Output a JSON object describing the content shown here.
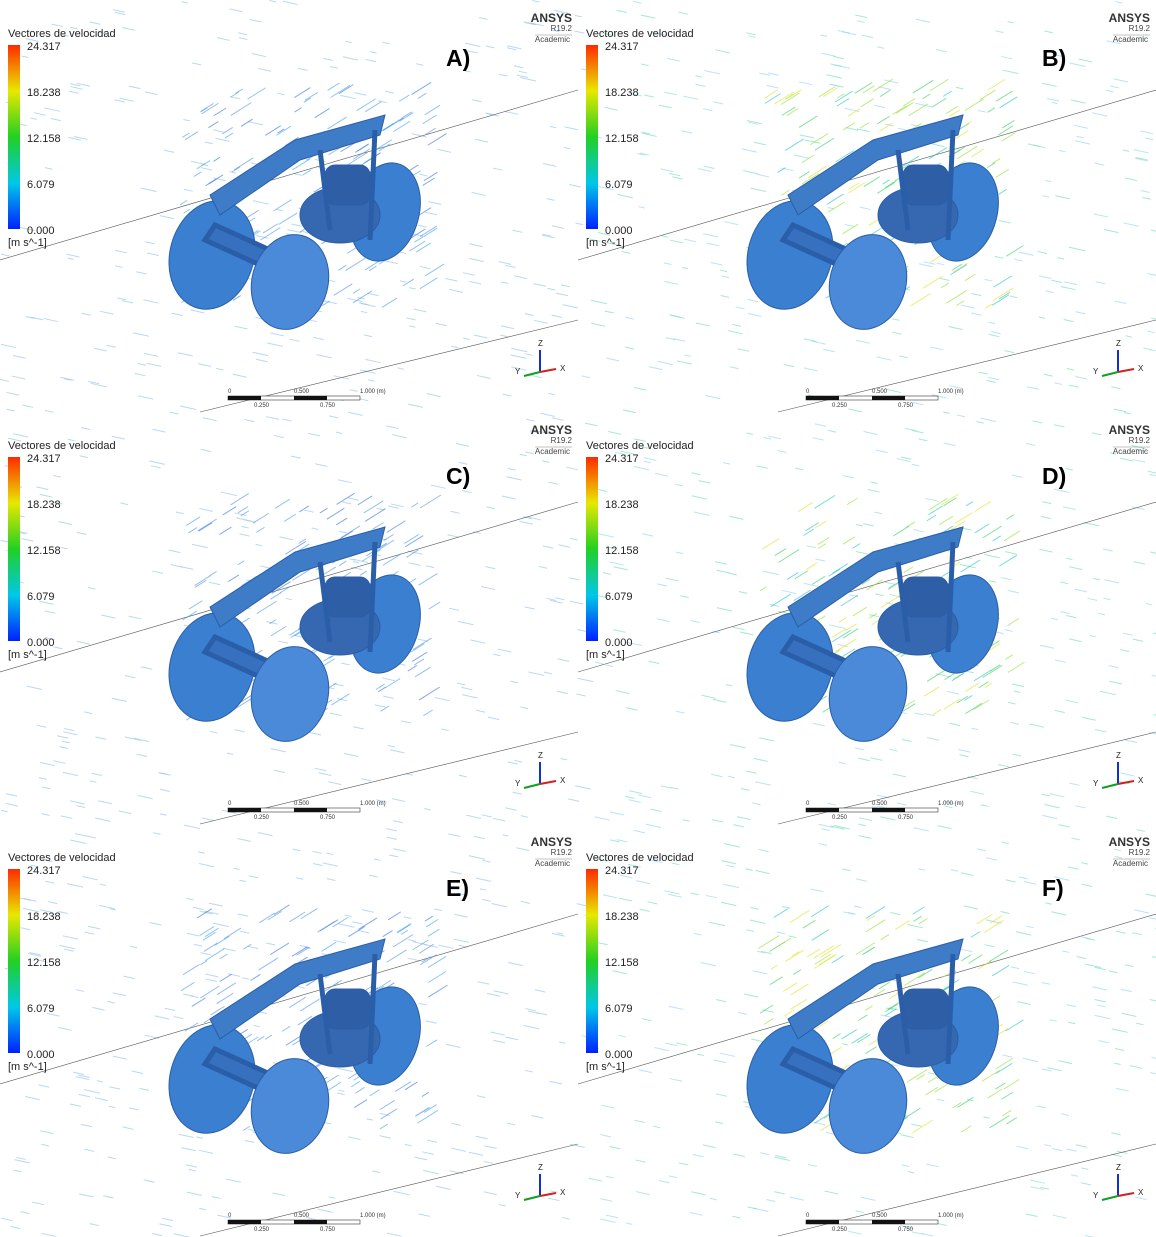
{
  "panels": [
    {
      "label": "A)",
      "legend": {
        "title": "Vectores de velocidad",
        "ticks": [
          "24.317",
          "18.238",
          "12.158",
          "6.079",
          "0.000"
        ],
        "unit": "[m s^-1]"
      },
      "logo": {
        "name": "ANSYS",
        "version": "R19.2",
        "edition": "Academic"
      },
      "scale": {
        "top": [
          "0",
          "0.500",
          "1.000 (m)"
        ],
        "bottom": [
          "0.250",
          "0.750"
        ]
      },
      "triad": [
        "Z",
        "Y",
        "X"
      ]
    },
    {
      "label": "B)",
      "legend": {
        "title": "Vectores de velocidad",
        "ticks": [
          "24.317",
          "18.238",
          "12.158",
          "6.079",
          "0.000"
        ],
        "unit": "[m s^-1]"
      },
      "logo": {
        "name": "ANSYS",
        "version": "R19.2",
        "edition": "Academic"
      },
      "scale": {
        "top": [
          "0",
          "0.500",
          "1.000 (m)"
        ],
        "bottom": [
          "0.250",
          "0.750"
        ]
      },
      "triad": [
        "Z",
        "Y",
        "X"
      ]
    },
    {
      "label": "C)",
      "legend": {
        "title": "Vectores de velocidad",
        "ticks": [
          "24.317",
          "18.238",
          "12.158",
          "6.079",
          "0.000"
        ],
        "unit": "[m s^-1]"
      },
      "logo": {
        "name": "ANSYS",
        "version": "R19.2",
        "edition": "Academic"
      },
      "scale": {
        "top": [
          "0",
          "0.500",
          "1.000 (m)"
        ],
        "bottom": [
          "0.250",
          "0.750"
        ]
      },
      "triad": [
        "Z",
        "Y",
        "X"
      ]
    },
    {
      "label": "D)",
      "legend": {
        "title": "Vectores de velocidad",
        "ticks": [
          "24.317",
          "18.238",
          "12.158",
          "6.079",
          "0.000"
        ],
        "unit": "[m s^-1]"
      },
      "logo": {
        "name": "ANSYS",
        "version": "R19.2",
        "edition": "Academic"
      },
      "scale": {
        "top": [
          "0",
          "0.500",
          "1.000 (m)"
        ],
        "bottom": [
          "0.250",
          "0.750"
        ]
      },
      "triad": [
        "Z",
        "Y",
        "X"
      ]
    },
    {
      "label": "E)",
      "legend": {
        "title": "Vectores de velocidad",
        "ticks": [
          "24.317",
          "18.238",
          "12.158",
          "6.079",
          "0.000"
        ],
        "unit": "[m s^-1]"
      },
      "logo": {
        "name": "ANSYS",
        "version": "R19.2",
        "edition": "Academic"
      },
      "scale": {
        "top": [
          "0",
          "0.500",
          "1.000 (m)"
        ],
        "bottom": [
          "0.250",
          "0.750"
        ]
      },
      "triad": [
        "Z",
        "Y",
        "X"
      ]
    },
    {
      "label": "F)",
      "legend": {
        "title": "Vectores de velocidad",
        "ticks": [
          "24.317",
          "18.238",
          "12.158",
          "6.079",
          "0.000"
        ],
        "unit": "[m s^-1]"
      },
      "logo": {
        "name": "ANSYS",
        "version": "R19.2",
        "edition": "Academic"
      },
      "scale": {
        "top": [
          "0",
          "0.500",
          "1.000 (m)"
        ],
        "bottom": [
          "0.250",
          "0.750"
        ]
      },
      "triad": [
        "Z",
        "Y",
        "X"
      ]
    }
  ]
}
